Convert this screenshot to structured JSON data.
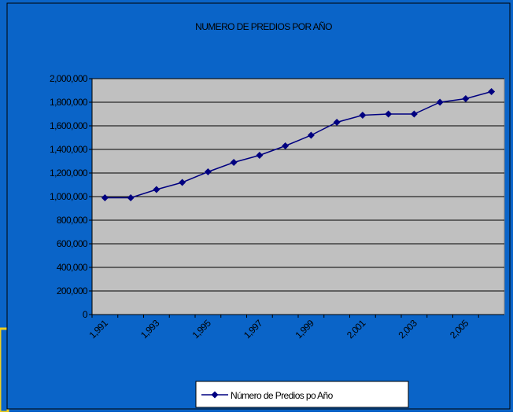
{
  "chart_data": {
    "type": "line",
    "title": "NUMERO DE PREDIOS POR AÑO",
    "categories": [
      "1,991",
      null,
      "1,993",
      null,
      "1,995",
      null,
      "1,997",
      null,
      "1,999",
      null,
      "2,001",
      null,
      "2,003",
      null,
      "2,005",
      null
    ],
    "series": [
      {
        "name": "Número de Predios po Año",
        "color": "#000080",
        "values": [
          990000,
          990000,
          1060000,
          1120000,
          1210000,
          1290000,
          1350000,
          1430000,
          1520000,
          1630000,
          1690000,
          1700000,
          1700000,
          1800000,
          1830000,
          1890000
        ]
      }
    ],
    "ylim": [
      0,
      2000000
    ],
    "yticks": [
      0,
      {
        "value": 200000,
        "label": "200,000"
      },
      {
        "value": 400000,
        "label": "400,000"
      },
      {
        "value": 600000,
        "label": "600,000"
      },
      {
        "value": 800000,
        "label": "800,000"
      },
      {
        "value": 1000000,
        "label": "1,000,000"
      },
      {
        "value": 1200000,
        "label": "1,200,000"
      },
      {
        "value": 1400000,
        "label": "1,400,000"
      },
      {
        "value": 1600000,
        "label": "1,600,000"
      },
      {
        "value": 1800000,
        "label": "1,800,000"
      },
      {
        "value": 2000000,
        "label": "2,000,000"
      }
    ],
    "grid": true,
    "legend": "bottom"
  }
}
